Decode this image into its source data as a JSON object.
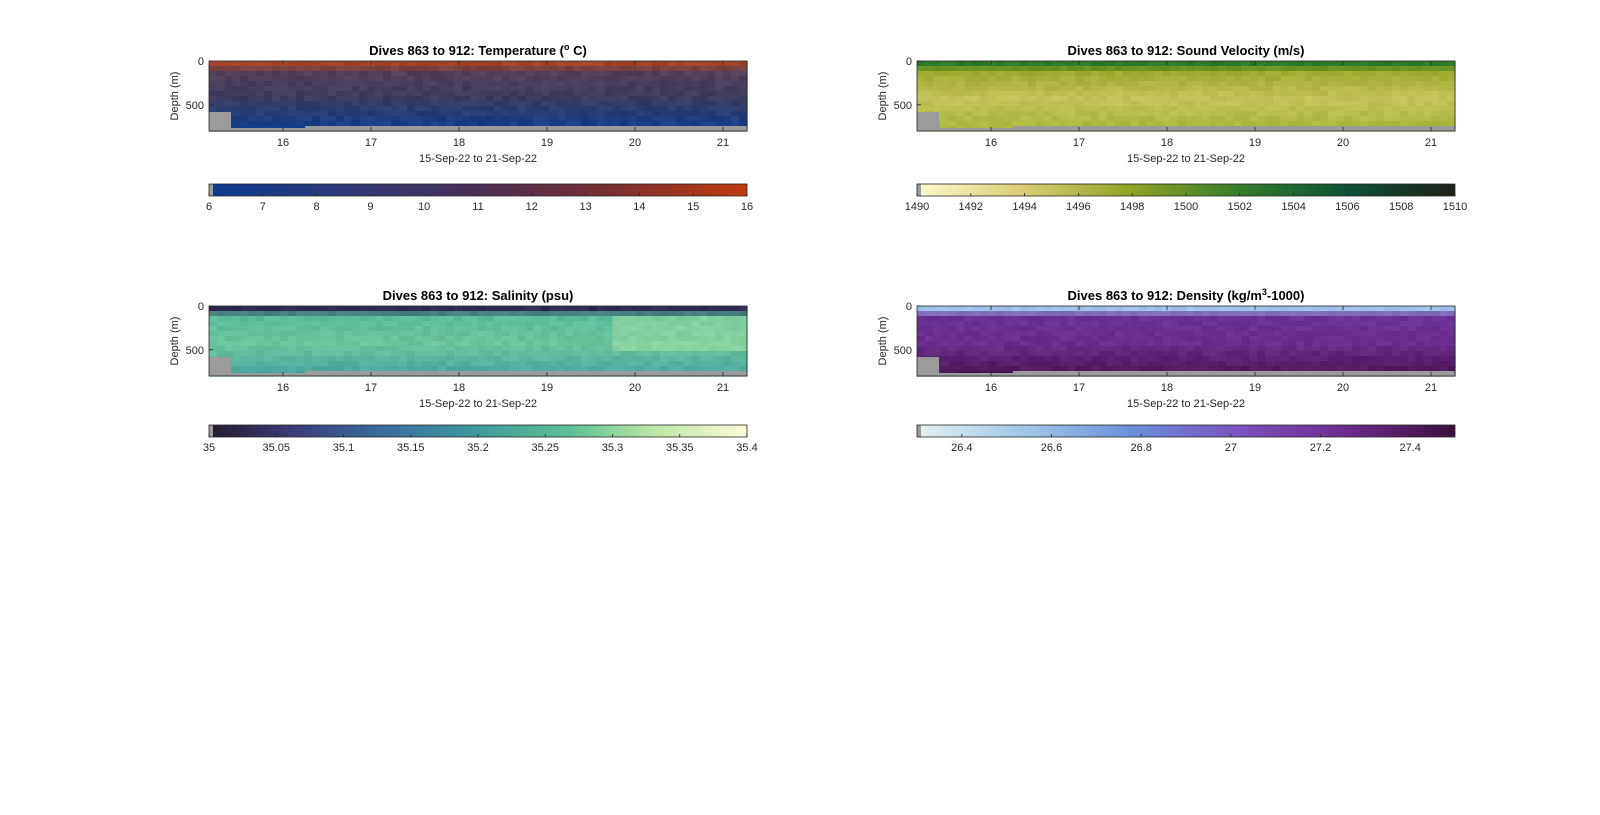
{
  "figure": {
    "background": "#ffffff",
    "grid": false,
    "missing_data_color": "#9b9b9b"
  },
  "chart_data": [
    {
      "type": "heatmap",
      "title_main": "Dives 863 to 912: Temperature (",
      "title_sup": "o",
      "title_tail": " C)",
      "xlabel": "15-Sep-22 to 21-Sep-22",
      "ylabel": "Depth (m)",
      "x_ticks": [
        "16",
        "17",
        "18",
        "19",
        "20",
        "21"
      ],
      "y_ticks": [
        "0",
        "500"
      ],
      "ylim": [
        800,
        0
      ],
      "colorbar": {
        "ticks": [
          "6",
          "7",
          "8",
          "9",
          "10",
          "11",
          "12",
          "13",
          "14",
          "15",
          "16"
        ],
        "range": [
          6,
          16
        ],
        "colors": [
          "#0b3b93",
          "#2e3a78",
          "#4a2f55",
          "#7a2f30",
          "#c23a0e"
        ]
      },
      "field": {
        "surface_color": "#a4432b",
        "thermocline_color": "#5b3f55",
        "interior_color": "#3b3c62",
        "deep_color": "#113f8c"
      }
    },
    {
      "type": "heatmap",
      "title_main": "Dives 863 to 912: Sound Velocity (m/s)",
      "title_sup": "",
      "title_tail": "",
      "xlabel": "15-Sep-22 to 21-Sep-22",
      "ylabel": "Depth (m)",
      "x_ticks": [
        "16",
        "17",
        "18",
        "19",
        "20",
        "21"
      ],
      "y_ticks": [
        "0",
        "500"
      ],
      "ylim": [
        800,
        0
      ],
      "colorbar": {
        "ticks": [
          "1490",
          "1492",
          "1494",
          "1496",
          "1498",
          "1500",
          "1502",
          "1504",
          "1506",
          "1508",
          "1510"
        ],
        "range": [
          1490,
          1510
        ],
        "colors": [
          "#fdfbcf",
          "#d9cb72",
          "#8ea325",
          "#357c2b",
          "#0e5136",
          "#1d2118"
        ]
      },
      "field": {
        "surface_color": "#2f7a28",
        "thermocline_color": "#8fa51e",
        "interior_color": "#c4c25a",
        "deep_color": "#a9b73a"
      }
    },
    {
      "type": "heatmap",
      "title_main": "Dives 863 to 912: Salinity (psu)",
      "title_sup": "",
      "title_tail": "",
      "xlabel": "15-Sep-22 to 21-Sep-22",
      "ylabel": "Depth (m)",
      "x_ticks": [
        "16",
        "17",
        "18",
        "19",
        "20",
        "21"
      ],
      "y_ticks": [
        "0",
        "500"
      ],
      "ylim": [
        800,
        0
      ],
      "colorbar": {
        "ticks": [
          "35",
          "35.05",
          "35.1",
          "35.15",
          "35.2",
          "35.25",
          "35.3",
          "35.35",
          "35.4"
        ],
        "range": [
          35,
          35.4
        ],
        "colors": [
          "#27192e",
          "#3b3f7e",
          "#3970a0",
          "#3d9b9d",
          "#5bc094",
          "#bfe8a6",
          "#fcfbd6"
        ]
      },
      "field": {
        "surface_color": "#2e2a55",
        "thermocline_color": "#55b99b",
        "interior_color": "#6cc49c",
        "deep_color": "#4aa7a0"
      }
    },
    {
      "type": "heatmap",
      "title_main": "Dives 863 to 912: Density (kg/m",
      "title_sup": "3",
      "title_tail": "-1000)",
      "xlabel": "15-Sep-22 to 21-Sep-22",
      "ylabel": "Depth (m)",
      "x_ticks": [
        "16",
        "17",
        "18",
        "19",
        "20",
        "21"
      ],
      "y_ticks": [
        "0",
        "500"
      ],
      "ylim": [
        800,
        0
      ],
      "colorbar": {
        "ticks": [
          "26.4",
          "26.6",
          "26.8",
          "27",
          "27.2",
          "27.4"
        ],
        "range": [
          26.3,
          27.5
        ],
        "colors": [
          "#e5f1f3",
          "#9fc7e6",
          "#6a8fdb",
          "#7b52c0",
          "#6d2a8a",
          "#3c0f3e"
        ]
      },
      "field": {
        "surface_color": "#9fc2ea",
        "thermocline_color": "#6c3598",
        "interior_color": "#6a2c8e",
        "deep_color": "#4c1756"
      }
    }
  ]
}
